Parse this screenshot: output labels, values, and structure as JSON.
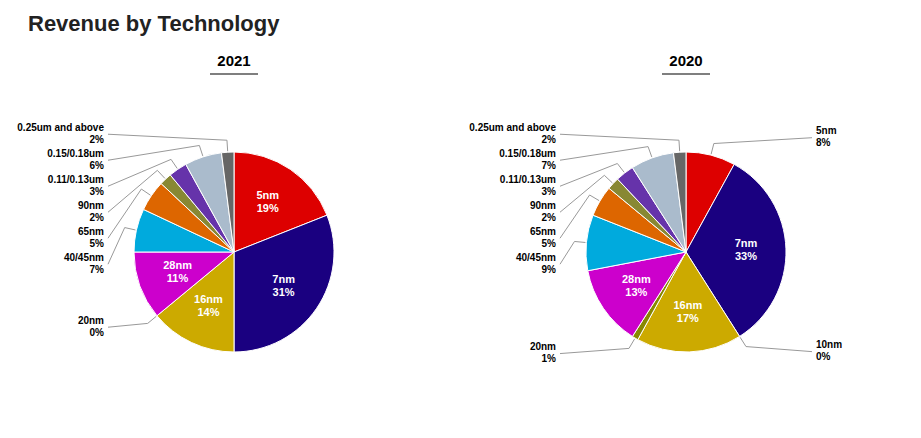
{
  "title": "Revenue by Technology",
  "chart_data": [
    {
      "type": "pie",
      "title": "2021",
      "categories": [
        "5nm",
        "7nm",
        "16nm",
        "20nm",
        "28nm",
        "40/45nm",
        "65nm",
        "90nm",
        "0.11/0.13um",
        "0.15/0.18um",
        "0.25um and above"
      ],
      "values": [
        19,
        31,
        14,
        0,
        11,
        7,
        5,
        2,
        3,
        6,
        2
      ],
      "value_labels": [
        "19%",
        "31%",
        "14%",
        "0%",
        "11%",
        "7%",
        "5%",
        "2%",
        "3%",
        "6%",
        "2%"
      ],
      "colors": [
        "#dd0000",
        "#1a0080",
        "#ccaa00",
        "#888800",
        "#cc00cc",
        "#00aadd",
        "#dd6600",
        "#888833",
        "#6633aa",
        "#aabbcc",
        "#666666"
      ],
      "data_labels": true
    },
    {
      "type": "pie",
      "title": "2020",
      "categories": [
        "5nm",
        "7nm",
        "10nm",
        "16nm",
        "20nm",
        "28nm",
        "40/45nm",
        "65nm",
        "90nm",
        "0.11/0.13um",
        "0.15/0.18um",
        "0.25um and above"
      ],
      "values": [
        8,
        33,
        0,
        17,
        1,
        13,
        9,
        5,
        2,
        3,
        7,
        2
      ],
      "value_labels": [
        "8%",
        "33%",
        "0%",
        "17%",
        "1%",
        "13%",
        "9%",
        "5%",
        "2%",
        "3%",
        "7%",
        "2%"
      ],
      "colors": [
        "#dd0000",
        "#1a0080",
        "#333366",
        "#ccaa00",
        "#888800",
        "#cc00cc",
        "#00aadd",
        "#dd6600",
        "#888833",
        "#6633aa",
        "#aabbcc",
        "#666666"
      ],
      "data_labels": true
    }
  ]
}
